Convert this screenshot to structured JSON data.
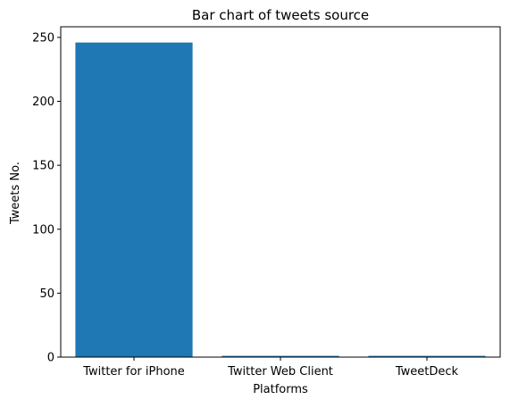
{
  "chart_data": {
    "type": "bar",
    "title": "Bar chart of tweets source",
    "xlabel": "Platforms",
    "ylabel": "Tweets No.",
    "categories": [
      "Twitter for iPhone",
      "Twitter Web Client",
      "TweetDeck"
    ],
    "values": [
      246,
      1,
      1
    ],
    "ylim": [
      0,
      258.3
    ],
    "yticks": [
      0,
      50,
      100,
      150,
      200,
      250
    ],
    "grid": false,
    "bar_color": "#1f77b4"
  }
}
